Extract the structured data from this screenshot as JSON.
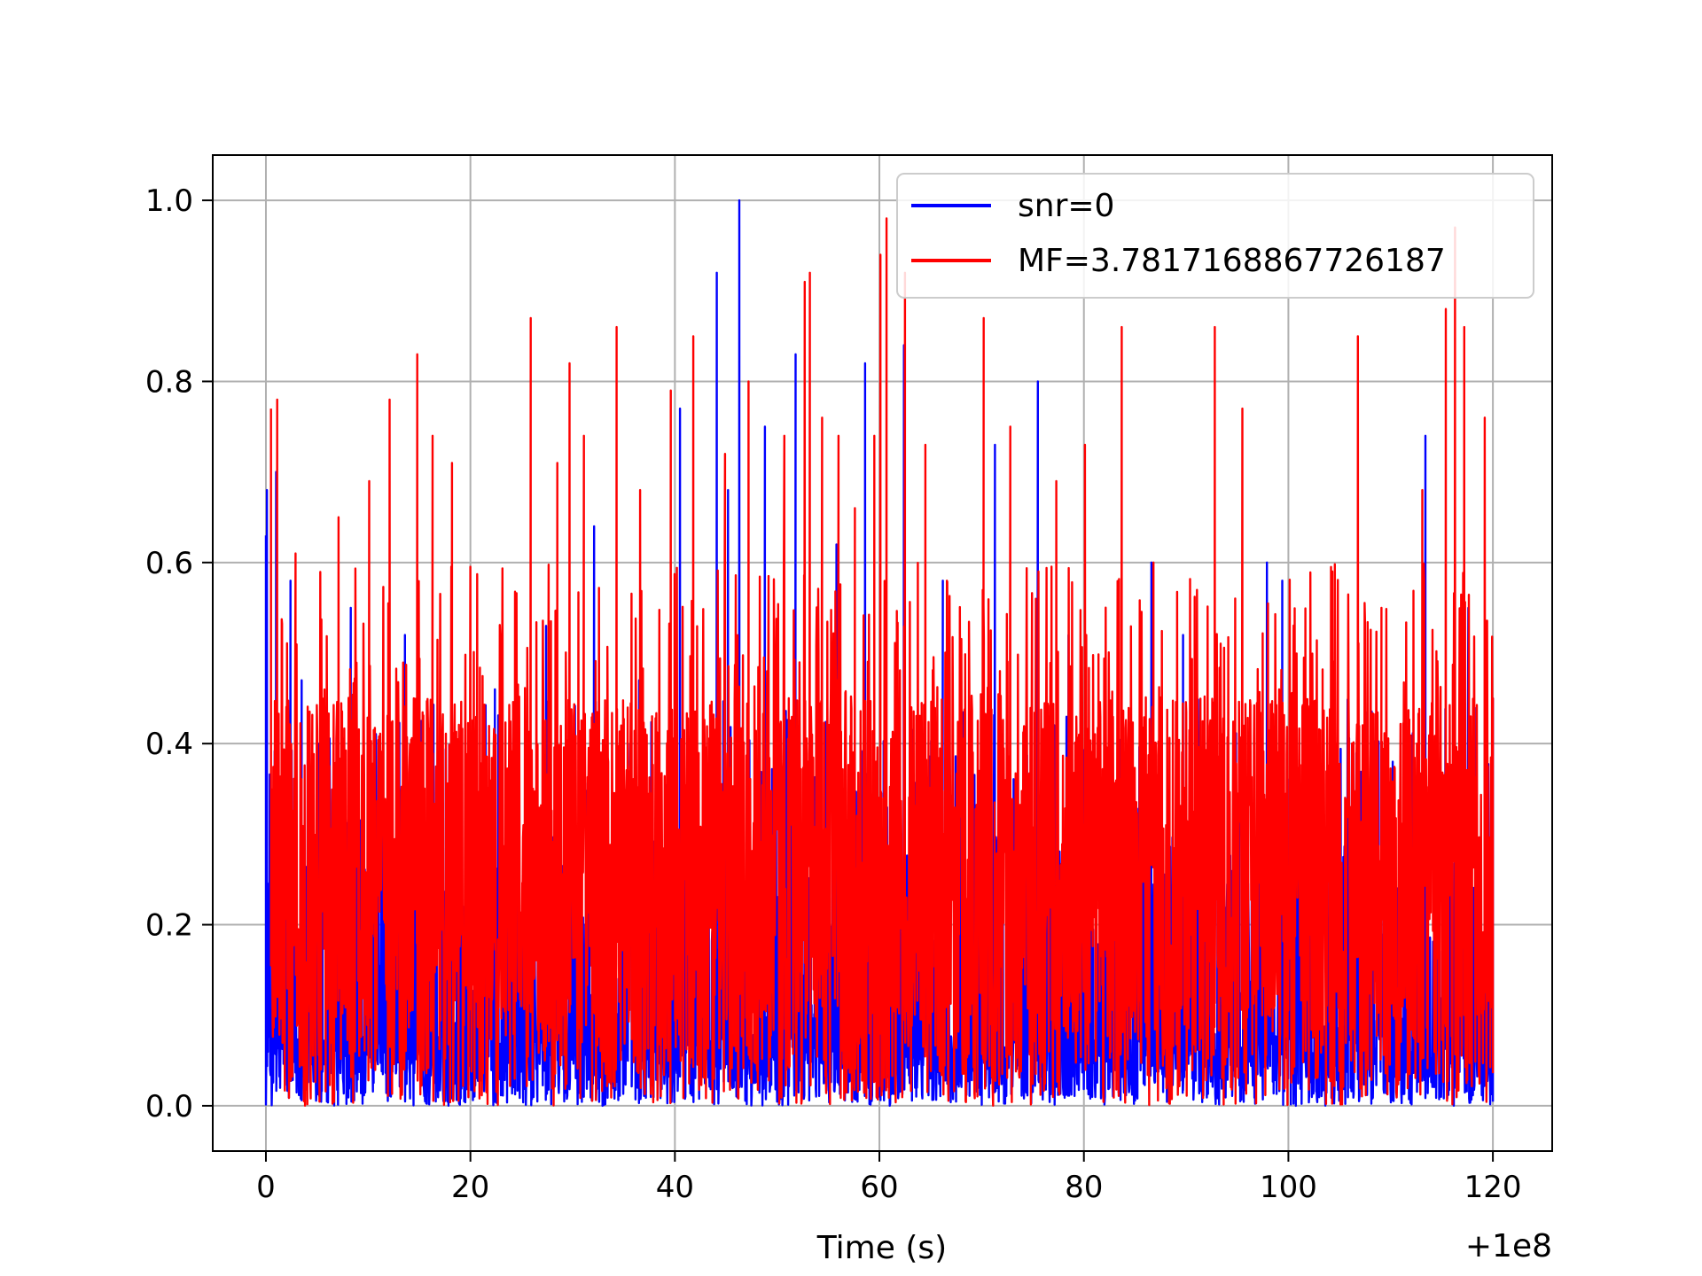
{
  "chart_data": {
    "type": "line",
    "title": "",
    "xlabel": "Time (s)",
    "ylabel": "",
    "x_offset_label": "+1e8",
    "xlim": [
      -5.2,
      125.8
    ],
    "ylim": [
      -0.05,
      1.05
    ],
    "x_ticks": [
      0,
      20,
      40,
      60,
      80,
      100,
      120
    ],
    "x_tick_labels": [
      "0",
      "20",
      "40",
      "60",
      "80",
      "100",
      "120"
    ],
    "y_ticks": [
      0.0,
      0.2,
      0.4,
      0.6,
      0.8,
      1.0
    ],
    "y_tick_labels": [
      "0.0",
      "0.2",
      "0.4",
      "0.6",
      "0.8",
      "1.0"
    ],
    "grid": true,
    "legend_position": "top-right",
    "series": [
      {
        "name": "snr=0",
        "color": "#0000ff",
        "baseline": 0.04,
        "points": [
          [
            0.0,
            0.63
          ],
          [
            0.1,
            0.68
          ],
          [
            1.0,
            0.7
          ],
          [
            2.4,
            0.58
          ],
          [
            3.5,
            0.47
          ],
          [
            5.2,
            0.4
          ],
          [
            8.3,
            0.55
          ],
          [
            13.6,
            0.52
          ],
          [
            15.0,
            0.45
          ],
          [
            22.4,
            0.46
          ],
          [
            27.4,
            0.53
          ],
          [
            32.1,
            0.64
          ],
          [
            36.5,
            0.47
          ],
          [
            40.5,
            0.77
          ],
          [
            44.1,
            0.92
          ],
          [
            45.2,
            0.68
          ],
          [
            46.3,
            1.0
          ],
          [
            48.8,
            0.75
          ],
          [
            51.8,
            0.83
          ],
          [
            55.8,
            0.62
          ],
          [
            58.6,
            0.82
          ],
          [
            62.4,
            0.84
          ],
          [
            66.2,
            0.58
          ],
          [
            71.3,
            0.73
          ],
          [
            75.5,
            0.8
          ],
          [
            78.5,
            0.52
          ],
          [
            86.6,
            0.6
          ],
          [
            89.7,
            0.52
          ],
          [
            97.9,
            0.6
          ],
          [
            99.4,
            0.58
          ],
          [
            102.2,
            0.47
          ],
          [
            110.2,
            0.38
          ],
          [
            113.4,
            0.74
          ],
          [
            117.6,
            0.55
          ],
          [
            120.0,
            0.45
          ]
        ]
      },
      {
        "name": "MF=3.7817168867726187",
        "color": "#ff0000",
        "baseline": 0.22,
        "points": [
          [
            0.5,
            0.77
          ],
          [
            1.1,
            0.78
          ],
          [
            2.9,
            0.61
          ],
          [
            7.1,
            0.65
          ],
          [
            10.1,
            0.69
          ],
          [
            12.1,
            0.78
          ],
          [
            14.8,
            0.83
          ],
          [
            16.3,
            0.74
          ],
          [
            18.2,
            0.71
          ],
          [
            25.9,
            0.87
          ],
          [
            28.5,
            0.71
          ],
          [
            29.7,
            0.82
          ],
          [
            31.1,
            0.74
          ],
          [
            34.3,
            0.86
          ],
          [
            36.6,
            0.68
          ],
          [
            39.6,
            0.79
          ],
          [
            41.8,
            0.85
          ],
          [
            44.9,
            0.72
          ],
          [
            47.2,
            0.8
          ],
          [
            50.7,
            0.74
          ],
          [
            52.7,
            0.91
          ],
          [
            53.2,
            0.92
          ],
          [
            54.4,
            0.76
          ],
          [
            56.0,
            0.74
          ],
          [
            57.6,
            0.66
          ],
          [
            59.5,
            0.74
          ],
          [
            60.1,
            0.94
          ],
          [
            60.7,
            0.98
          ],
          [
            62.5,
            0.92
          ],
          [
            64.5,
            0.73
          ],
          [
            66.6,
            0.58
          ],
          [
            70.2,
            0.87
          ],
          [
            72.8,
            0.75
          ],
          [
            75.3,
            0.56
          ],
          [
            77.3,
            0.69
          ],
          [
            80.1,
            0.73
          ],
          [
            83.7,
            0.86
          ],
          [
            86.8,
            0.6
          ],
          [
            92.8,
            0.86
          ],
          [
            95.5,
            0.77
          ],
          [
            99.1,
            0.46
          ],
          [
            104.3,
            0.59
          ],
          [
            106.8,
            0.85
          ],
          [
            109.1,
            0.55
          ],
          [
            113.1,
            0.68
          ],
          [
            115.4,
            0.88
          ],
          [
            116.3,
            0.97
          ],
          [
            117.2,
            0.86
          ],
          [
            119.2,
            0.76
          ],
          [
            120.0,
            0.45
          ]
        ]
      }
    ]
  }
}
